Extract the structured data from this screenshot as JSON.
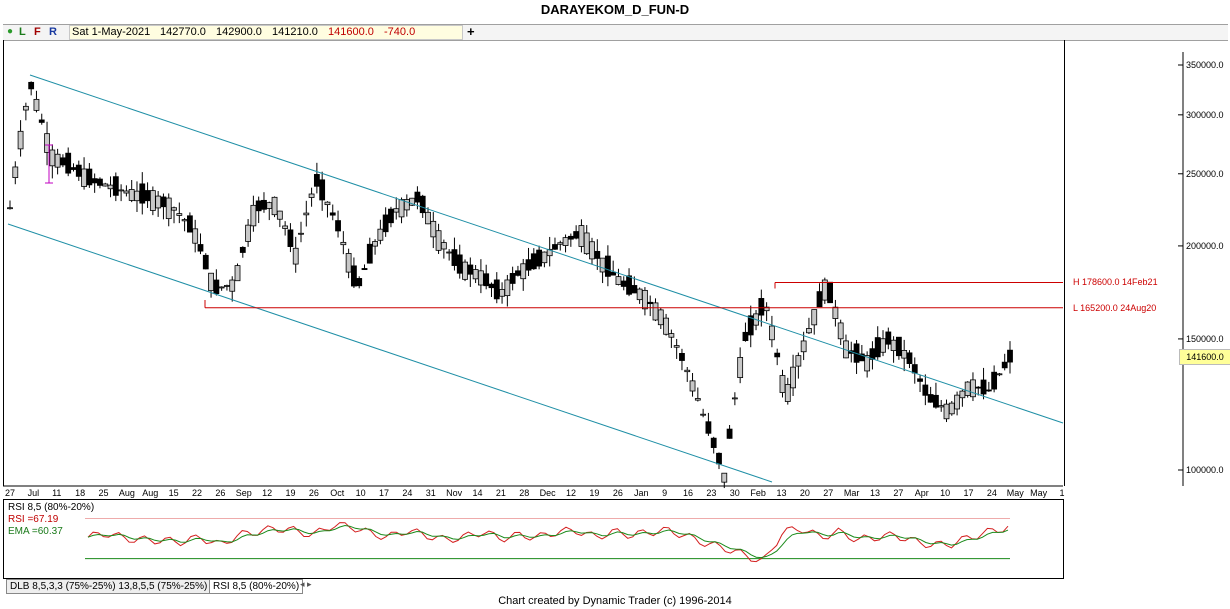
{
  "window": {
    "title": "DARAYEKOM_D_FUN-D"
  },
  "toolbar": {
    "dot_icon": "green-dot-icon",
    "btn_l": "L",
    "btn_f": "F",
    "btn_r": "R",
    "date": "Sat 1-May-2021",
    "open": "142770.0",
    "high": "142900.0",
    "low": "141210.0",
    "close": "141600.0",
    "change": "-740.0",
    "plus_icon": "crosshair-plus-icon"
  },
  "price_axis": {
    "ticks": [
      "350000.0",
      "300000.0",
      "250000.0",
      "200000.0",
      "150000.0",
      "100000.0"
    ],
    "current_price": "141600.0"
  },
  "date_axis": {
    "ticks": [
      "27",
      "Jul",
      "11",
      "18",
      "25",
      "Aug",
      "Aug",
      "15",
      "22",
      "26",
      "Sep",
      "12",
      "19",
      "26",
      "Oct",
      "10",
      "17",
      "24",
      "31",
      "Nov",
      "14",
      "21",
      "28",
      "Dec",
      "12",
      "19",
      "26",
      "Jan",
      "9",
      "16",
      "23",
      "30",
      "Feb",
      "13",
      "20",
      "27",
      "Mar",
      "13",
      "27",
      "Apr",
      "10",
      "17",
      "24",
      "May",
      "May",
      "1"
    ]
  },
  "annotations": {
    "high_line": "H 178600.0 14Feb21",
    "low_line": "L 165200.0 24Aug20"
  },
  "indicator": {
    "label": "RSI 8,5 (80%-20%)",
    "rsi_text": "RSI =67.19",
    "ema_text": "EMA =60.37"
  },
  "tabs": {
    "items": [
      "DLB 8,5,3,3 (75%-25%) 13,8,5,5 (75%-25%)",
      "RSI 8,5 (80%-20%)"
    ]
  },
  "footer": {
    "text": "Chart created by Dynamic Trader  (c) 1996-2014"
  },
  "colors": {
    "channel": "#1f8fa6",
    "hline": "#cc0000",
    "rsi": "#d42020",
    "ema": "#1a8a1a",
    "accent_magenta": "#c000c0"
  },
  "chart_data": {
    "type": "candlestick",
    "price_unit": "",
    "y_scale": "log",
    "ylim": [
      90000,
      370000
    ],
    "approx_closes": [
      225000,
      330000,
      265000,
      255000,
      245000,
      240000,
      235000,
      232000,
      225000,
      210000,
      175000,
      178000,
      225000,
      228000,
      195000,
      245000,
      215000,
      175000,
      205000,
      225000,
      232000,
      205000,
      188000,
      183000,
      172000,
      185000,
      192000,
      202000,
      208000,
      190000,
      178000,
      172000,
      160000,
      140000,
      118000,
      98000,
      150000,
      168000,
      125000,
      150000,
      178000,
      145000,
      140000,
      150000,
      142000,
      125000,
      120000,
      130000,
      128000,
      141600
    ],
    "horizontal_levels": [
      {
        "label": "H 178600.0 14Feb21",
        "value": 178600
      },
      {
        "label": "L 165200.0 24Aug20",
        "value": 165200
      }
    ],
    "rsi_approx": [
      52,
      58,
      50,
      48,
      47,
      45,
      52,
      40,
      55,
      60,
      65,
      62,
      55,
      70,
      68,
      58,
      52,
      62,
      55,
      48,
      52,
      60,
      50,
      55,
      52,
      60,
      62,
      52,
      60,
      55,
      60,
      62,
      52,
      42,
      35,
      25,
      15,
      60,
      65,
      52,
      60,
      48,
      52,
      55,
      46,
      40,
      42,
      52,
      60,
      67
    ]
  }
}
